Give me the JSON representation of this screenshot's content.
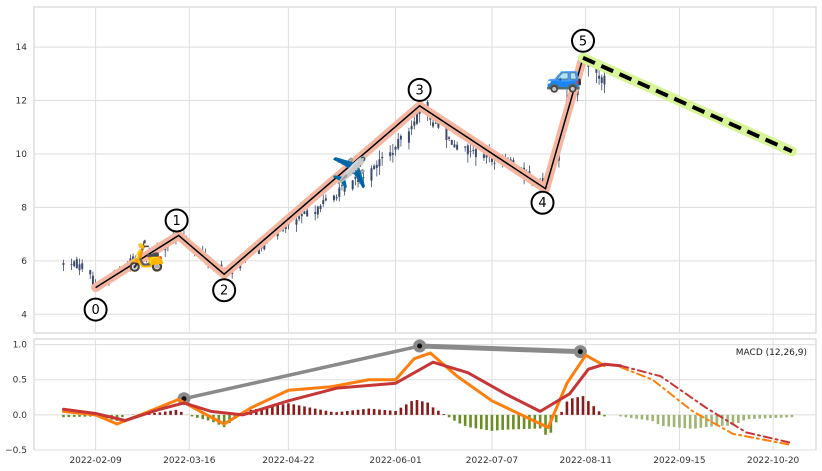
{
  "chart_data": [
    {
      "type": "candlestick",
      "panel": "price",
      "title": "",
      "xlabel": "",
      "ylabel": "",
      "ylim": [
        3.3,
        15.5
      ],
      "y_ticks": [
        4,
        6,
        8,
        10,
        12,
        14
      ],
      "grid": true,
      "dates_range": [
        "2022-01-28",
        "2022-08-18"
      ],
      "price_path": [
        {
          "date": "2022-01-28",
          "price": 5.9
        },
        {
          "date": "2022-02-05",
          "price": 5.8
        },
        {
          "date": "2022-02-09",
          "price": 5.0
        },
        {
          "date": "2022-02-22",
          "price": 6.0
        },
        {
          "date": "2022-03-12",
          "price": 6.9
        },
        {
          "date": "2022-03-20",
          "price": 6.2
        },
        {
          "date": "2022-03-29",
          "price": 5.5
        },
        {
          "date": "2022-04-15",
          "price": 6.9
        },
        {
          "date": "2022-05-10",
          "price": 8.5
        },
        {
          "date": "2022-06-01",
          "price": 10.2
        },
        {
          "date": "2022-06-10",
          "price": 11.7
        },
        {
          "date": "2022-06-25",
          "price": 10.2
        },
        {
          "date": "2022-07-15",
          "price": 9.6
        },
        {
          "date": "2022-07-27",
          "price": 8.7
        },
        {
          "date": "2022-08-05",
          "price": 12.3
        },
        {
          "date": "2022-08-10",
          "price": 13.5
        },
        {
          "date": "2022-08-18",
          "price": 12.8
        }
      ],
      "wave_points": [
        {
          "label": "0",
          "date": "2022-02-09",
          "price": 5.0
        },
        {
          "label": "1",
          "date": "2022-03-12",
          "price": 6.95
        },
        {
          "label": "2",
          "date": "2022-03-29",
          "price": 5.5
        },
        {
          "label": "3",
          "date": "2022-06-10",
          "price": 11.8
        },
        {
          "label": "4",
          "date": "2022-07-27",
          "price": 8.7
        },
        {
          "label": "5",
          "date": "2022-08-10",
          "price": 13.6
        }
      ],
      "projection": {
        "from": {
          "date": "2022-08-10",
          "price": 13.6
        },
        "to": {
          "date": "2022-10-27",
          "price": 10.1
        }
      },
      "icons": [
        {
          "name": "scooter-icon",
          "glyph": "🛵",
          "date": "2022-02-28",
          "price": 6.2
        },
        {
          "name": "airplane-icon",
          "glyph": "✈️",
          "date": "2022-05-15",
          "price": 9.3
        },
        {
          "name": "car-icon",
          "glyph": "🚙",
          "date": "2022-08-03",
          "price": 12.9
        }
      ],
      "colors": {
        "candle": "#3b4a6b",
        "wave_glow": "#f4b6a0",
        "wave_line": "#000000",
        "projection": "#000000",
        "projection_glow": "#d8f59a"
      }
    },
    {
      "type": "line",
      "panel": "indicator",
      "title": "",
      "legend_text": "MACD (12,26,9)",
      "legend_position": "top-right",
      "ylim": [
        -0.5,
        1.08
      ],
      "y_ticks": [
        -0.5,
        0.0,
        0.5,
        1.0
      ],
      "y_tick_labels": [
        "−0.5",
        "0.0",
        "0.5",
        "1.0"
      ],
      "grid": true,
      "x_ticks": [
        "2022-02-09",
        "2022-03-16",
        "2022-04-22",
        "2022-06-01",
        "2022-07-07",
        "2022-08-11",
        "2022-09-15",
        "2022-10-20"
      ],
      "series": [
        {
          "role": "macd",
          "color": "#ff7f0e",
          "points": [
            {
              "date": "2022-01-28",
              "value": 0.05
            },
            {
              "date": "2022-02-09",
              "value": 0.0
            },
            {
              "date": "2022-02-17",
              "value": -0.13
            },
            {
              "date": "2022-03-01",
              "value": 0.05
            },
            {
              "date": "2022-03-12",
              "value": 0.22
            },
            {
              "date": "2022-03-20",
              "value": 0.05
            },
            {
              "date": "2022-03-29",
              "value": -0.13
            },
            {
              "date": "2022-04-08",
              "value": 0.1
            },
            {
              "date": "2022-04-22",
              "value": 0.35
            },
            {
              "date": "2022-05-08",
              "value": 0.4
            },
            {
              "date": "2022-05-22",
              "value": 0.5
            },
            {
              "date": "2022-06-01",
              "value": 0.5
            },
            {
              "date": "2022-06-08",
              "value": 0.8
            },
            {
              "date": "2022-06-14",
              "value": 0.88
            },
            {
              "date": "2022-06-24",
              "value": 0.55
            },
            {
              "date": "2022-07-07",
              "value": 0.2
            },
            {
              "date": "2022-07-18",
              "value": 0.0
            },
            {
              "date": "2022-07-28",
              "value": -0.18
            },
            {
              "date": "2022-08-04",
              "value": 0.45
            },
            {
              "date": "2022-08-11",
              "value": 0.85
            },
            {
              "date": "2022-08-18",
              "value": 0.7
            }
          ]
        },
        {
          "role": "signal",
          "color": "#c73636",
          "points": [
            {
              "date": "2022-01-28",
              "value": 0.08
            },
            {
              "date": "2022-02-09",
              "value": 0.02
            },
            {
              "date": "2022-02-20",
              "value": -0.08
            },
            {
              "date": "2022-03-05",
              "value": 0.08
            },
            {
              "date": "2022-03-14",
              "value": 0.17
            },
            {
              "date": "2022-03-24",
              "value": 0.05
            },
            {
              "date": "2022-04-05",
              "value": 0.0
            },
            {
              "date": "2022-04-22",
              "value": 0.2
            },
            {
              "date": "2022-05-10",
              "value": 0.38
            },
            {
              "date": "2022-06-01",
              "value": 0.45
            },
            {
              "date": "2022-06-15",
              "value": 0.75
            },
            {
              "date": "2022-06-28",
              "value": 0.6
            },
            {
              "date": "2022-07-12",
              "value": 0.3
            },
            {
              "date": "2022-07-25",
              "value": 0.05
            },
            {
              "date": "2022-08-05",
              "value": 0.3
            },
            {
              "date": "2022-08-12",
              "value": 0.65
            },
            {
              "date": "2022-08-18",
              "value": 0.72
            },
            {
              "date": "2022-08-24",
              "value": 0.7
            }
          ]
        },
        {
          "role": "macd-projection",
          "color": "#ff7f0e",
          "points": [
            {
              "date": "2022-08-24",
              "value": 0.68
            },
            {
              "date": "2022-09-05",
              "value": 0.5
            },
            {
              "date": "2022-09-20",
              "value": 0.05
            },
            {
              "date": "2022-10-05",
              "value": -0.27
            },
            {
              "date": "2022-10-27",
              "value": -0.43
            }
          ]
        },
        {
          "role": "signal-projection",
          "color": "#c73636",
          "points": [
            {
              "date": "2022-08-24",
              "value": 0.7
            },
            {
              "date": "2022-09-08",
              "value": 0.55
            },
            {
              "date": "2022-09-25",
              "value": 0.1
            },
            {
              "date": "2022-10-10",
              "value": -0.25
            },
            {
              "date": "2022-10-27",
              "value": -0.4
            }
          ]
        }
      ],
      "divergence_points": [
        {
          "date": "2022-03-14",
          "value": 0.23
        },
        {
          "date": "2022-06-10",
          "value": 0.98
        },
        {
          "date": "2022-08-09",
          "value": 0.9
        }
      ],
      "histogram_colors": {
        "positive": "#8b1a1a",
        "negative": "#6b8e23",
        "projected": "#9fb573"
      }
    }
  ]
}
